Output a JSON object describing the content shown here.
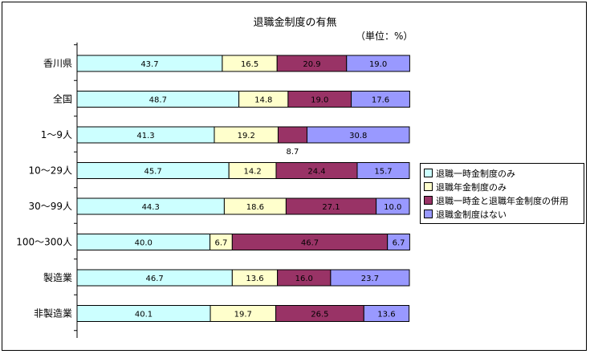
{
  "chart_data": {
    "type": "bar",
    "orientation": "horizontal",
    "stacked": true,
    "title": "退職金制度の有無",
    "unit": "（単位：%）",
    "xlim": [
      0,
      100
    ],
    "categories": [
      "香川県",
      "全国",
      "1～9人",
      "10～29人",
      "30～99人",
      "100～300人",
      "製造業",
      "非製造業"
    ],
    "series": [
      {
        "name": "退職一時金制度のみ",
        "color": "#ccffff",
        "values": [
          43.7,
          48.7,
          41.3,
          45.7,
          44.3,
          40.0,
          46.7,
          40.1
        ]
      },
      {
        "name": "退職年金制度のみ",
        "color": "#ffffcc",
        "values": [
          16.5,
          14.8,
          19.2,
          14.2,
          18.6,
          6.7,
          13.6,
          19.7
        ]
      },
      {
        "name": "退職一時金と退職年金制度の併用",
        "color": "#993366",
        "values": [
          20.9,
          19.0,
          8.7,
          24.4,
          27.1,
          46.7,
          16.0,
          26.5
        ]
      },
      {
        "name": "退職金制度はない",
        "color": "#9999ff",
        "values": [
          19.0,
          17.6,
          30.8,
          15.7,
          10.0,
          6.7,
          23.7,
          13.6
        ]
      }
    ],
    "value_labels": [
      [
        "43.7",
        "16.5",
        "20.9",
        "19.0"
      ],
      [
        "48.7",
        "14.8",
        "19.0",
        "17.6"
      ],
      [
        "41.3",
        "19.2",
        "8.7",
        "30.8"
      ],
      [
        "45.7",
        "14.2",
        "24.4",
        "15.7"
      ],
      [
        "44.3",
        "18.6",
        "27.1",
        "10.0"
      ],
      [
        "40.0",
        "6.7",
        "46.7",
        "6.7"
      ],
      [
        "46.7",
        "13.6",
        "16.0",
        "23.7"
      ],
      [
        "40.1",
        "19.7",
        "26.5",
        "13.6"
      ]
    ],
    "legend_position": "right",
    "grid": false
  }
}
